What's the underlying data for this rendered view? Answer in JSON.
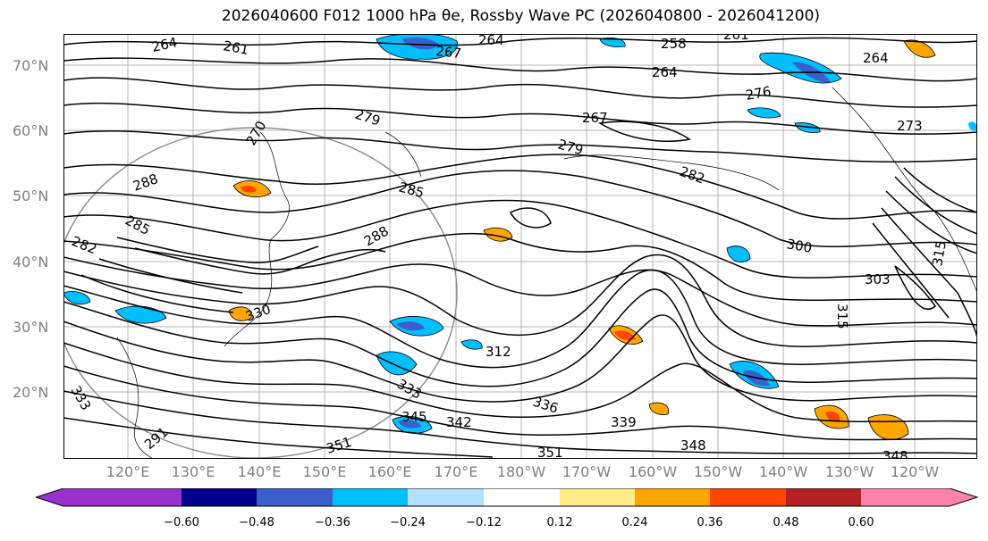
{
  "title": "2026040600 F012 1000 hPa θe, Rossby Wave PC (2026040800 - 2026041200)",
  "lat_labels": [
    "70°N",
    "60°N",
    "50°N",
    "40°N",
    "30°N",
    "20°N"
  ],
  "lon_labels": [
    "120°E",
    "130°E",
    "140°E",
    "150°E",
    "160°E",
    "170°E",
    "180°W",
    "170°W",
    "160°W",
    "150°W",
    "140°W",
    "130°W",
    "120°W"
  ],
  "contour_labels": [
    "264",
    "261",
    "267",
    "264",
    "258",
    "261",
    "264",
    "264",
    "270",
    "279",
    "276",
    "267",
    "279",
    "273",
    "282",
    "288",
    "285",
    "285",
    "288",
    "282",
    "300",
    "303",
    "315",
    "315",
    "330",
    "312",
    "333",
    "336",
    "339",
    "345",
    "342",
    "348",
    "351",
    "351",
    "348",
    "333",
    "291"
  ],
  "colorbar": {
    "colors": [
      "#9932cc",
      "#00008b",
      "#3a5fcd",
      "#00bfff",
      "#b0e2ff",
      "#ffffff",
      "#ffec8b",
      "#ffa500",
      "#ff4500",
      "#b22222",
      "#ff82ab"
    ],
    "ticks": [
      "−0.60",
      "−0.48",
      "−0.36",
      "−0.24",
      "−0.12",
      "0.12",
      "0.24",
      "0.36",
      "0.48",
      "0.60"
    ]
  }
}
